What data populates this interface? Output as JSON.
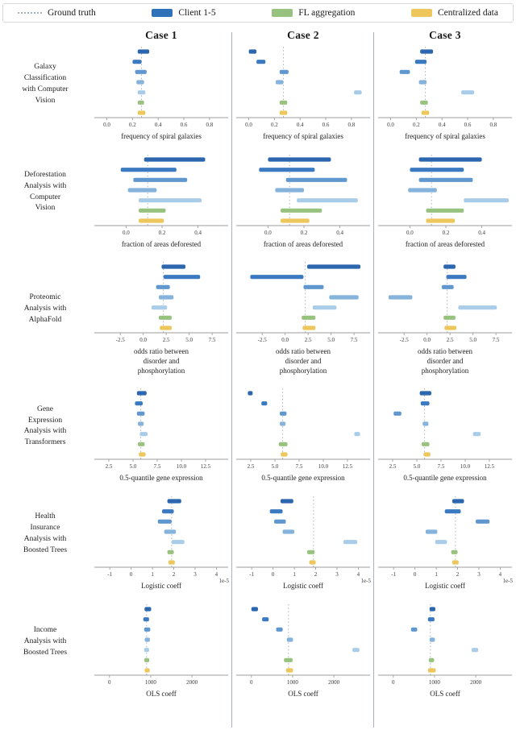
{
  "legend": {
    "items": [
      {
        "label": "Ground truth",
        "type": "dotted-line",
        "color": "#a9b3bd"
      },
      {
        "label": "Client 1-5",
        "type": "swatch",
        "color": "#2f72b8"
      },
      {
        "label": "FL aggregation",
        "type": "swatch",
        "color": "#97c37e"
      },
      {
        "label": "Centralized data",
        "type": "swatch",
        "color": "#edc75b"
      }
    ]
  },
  "chart_data": {
    "type": "bar",
    "subtype": "horizontal-interval-grid",
    "columns": [
      "Case 1",
      "Case 2",
      "Case 3"
    ],
    "series": [
      "Client 1",
      "Client 2",
      "Client 3",
      "Client 4",
      "Client 5",
      "FL aggregation",
      "Centralized data"
    ],
    "series_colors": [
      "#2b66ae",
      "#3b7ac0",
      "#6097ce",
      "#86b3dc",
      "#a9cce8",
      "#97c37e",
      "#edc75b"
    ],
    "ground_truth_color": "#a9b3bd",
    "rows": [
      {
        "label_lines": [
          "Galaxy",
          "Classification",
          "with Computer",
          "Vision"
        ],
        "xlabel_lines": [
          "frequency of spiral galaxies"
        ],
        "xlim": [
          -0.06,
          0.92
        ],
        "tick_values": [
          0.0,
          0.2,
          0.4,
          0.6,
          0.8
        ],
        "tick_labels": [
          "0.0",
          "0.2",
          "0.4",
          "0.6",
          "0.8"
        ],
        "ground_truth": 0.27,
        "cases": [
          {
            "case": "Case 1",
            "intervals": [
              [
                0.24,
                0.33
              ],
              [
                0.2,
                0.27
              ],
              [
                0.22,
                0.31
              ],
              [
                0.23,
                0.29
              ],
              [
                0.24,
                0.3
              ],
              [
                0.24,
                0.29
              ],
              [
                0.24,
                0.3
              ]
            ]
          },
          {
            "case": "Case 2",
            "intervals": [
              [
                0.0,
                0.06
              ],
              [
                0.06,
                0.13
              ],
              [
                0.24,
                0.31
              ],
              [
                0.21,
                0.27
              ],
              [
                0.82,
                0.88
              ],
              [
                0.24,
                0.3
              ],
              [
                0.24,
                0.3
              ]
            ]
          },
          {
            "case": "Case 3",
            "intervals": [
              [
                0.23,
                0.33
              ],
              [
                0.19,
                0.28
              ],
              [
                0.07,
                0.15
              ],
              [
                0.22,
                0.28
              ],
              [
                0.55,
                0.65
              ],
              [
                0.23,
                0.29
              ],
              [
                0.24,
                0.3
              ]
            ]
          }
        ]
      },
      {
        "label_lines": [
          "Deforestation",
          "Analysis with",
          "Computer",
          "Vision"
        ],
        "xlabel_lines": [
          "fraction of areas deforested"
        ],
        "xlim": [
          -0.15,
          0.55
        ],
        "tick_values": [
          0.0,
          0.2,
          0.4
        ],
        "tick_labels": [
          "0.0",
          "0.2",
          "0.4"
        ],
        "ground_truth": 0.12,
        "cases": [
          {
            "case": "Case 1",
            "intervals": [
              [
                0.1,
                0.44
              ],
              [
                -0.03,
                0.28
              ],
              [
                0.04,
                0.34
              ],
              [
                0.01,
                0.17
              ],
              [
                0.07,
                0.42
              ],
              [
                0.07,
                0.22
              ],
              [
                0.07,
                0.21
              ]
            ]
          },
          {
            "case": "Case 2",
            "intervals": [
              [
                0.0,
                0.35
              ],
              [
                -0.05,
                0.26
              ],
              [
                0.1,
                0.44
              ],
              [
                0.04,
                0.2
              ],
              [
                0.16,
                0.5
              ],
              [
                0.07,
                0.3
              ],
              [
                0.07,
                0.23
              ]
            ]
          },
          {
            "case": "Case 3",
            "intervals": [
              [
                0.05,
                0.4
              ],
              [
                0.0,
                0.3
              ],
              [
                0.05,
                0.35
              ],
              [
                -0.01,
                0.15
              ],
              [
                0.3,
                0.55
              ],
              [
                0.09,
                0.3
              ],
              [
                0.09,
                0.25
              ]
            ]
          }
        ]
      },
      {
        "label_lines": [
          "Proteomic",
          "Analysis with",
          "AlphaFold"
        ],
        "xlabel_lines": [
          "odds ratio between",
          "disorder and",
          "phosphorylation"
        ],
        "xlim": [
          -4.8,
          8.9
        ],
        "tick_values": [
          -2.5,
          0.0,
          2.5,
          5.0,
          7.5
        ],
        "tick_labels": [
          "-2.5",
          "0.0",
          "2.5",
          "5.0",
          "7.5"
        ],
        "ground_truth": 2.2,
        "cases": [
          {
            "case": "Case 1",
            "intervals": [
              [
                2.0,
                4.6
              ],
              [
                2.2,
                6.2
              ],
              [
                1.4,
                2.9
              ],
              [
                1.7,
                3.3
              ],
              [
                0.9,
                2.6
              ],
              [
                1.7,
                3.1
              ],
              [
                1.8,
                3.1
              ]
            ]
          },
          {
            "case": "Case 2",
            "intervals": [
              [
                2.4,
                8.2
              ],
              [
                -3.8,
                2.0
              ],
              [
                2.0,
                4.2
              ],
              [
                4.8,
                8.0
              ],
              [
                3.0,
                5.6
              ],
              [
                1.8,
                3.3
              ],
              [
                1.9,
                3.3
              ]
            ]
          },
          {
            "case": "Case 3",
            "intervals": [
              [
                1.8,
                3.1
              ],
              [
                2.1,
                4.3
              ],
              [
                1.6,
                2.9
              ],
              [
                -4.2,
                -1.6
              ],
              [
                3.4,
                7.6
              ],
              [
                1.8,
                3.1
              ],
              [
                1.9,
                3.2
              ]
            ]
          }
        ]
      },
      {
        "label_lines": [
          "Gene",
          "Expression",
          "Analysis with",
          "Transformers"
        ],
        "xlabel_lines": [
          "0.5-quantile gene expression"
        ],
        "xlim": [
          1.5,
          14.5
        ],
        "tick_values": [
          2.5,
          5.0,
          7.5,
          10.0,
          12.5
        ],
        "tick_labels": [
          "2.5",
          "5.0",
          "7.5",
          "10.0",
          "12.5"
        ],
        "ground_truth": 5.8,
        "cases": [
          {
            "case": "Case 1",
            "intervals": [
              [
                5.4,
                6.4
              ],
              [
                5.2,
                6.0
              ],
              [
                5.4,
                6.2
              ],
              [
                5.5,
                6.1
              ],
              [
                5.7,
                6.5
              ],
              [
                5.5,
                6.2
              ],
              [
                5.6,
                6.3
              ]
            ]
          },
          {
            "case": "Case 2",
            "intervals": [
              [
                2.2,
                2.7
              ],
              [
                3.6,
                4.2
              ],
              [
                5.5,
                6.2
              ],
              [
                5.5,
                6.1
              ],
              [
                13.2,
                13.8
              ],
              [
                5.4,
                6.3
              ],
              [
                5.6,
                6.3
              ]
            ]
          },
          {
            "case": "Case 3",
            "intervals": [
              [
                5.3,
                6.5
              ],
              [
                5.4,
                6.3
              ],
              [
                2.6,
                3.4
              ],
              [
                5.6,
                6.2
              ],
              [
                10.8,
                11.6
              ],
              [
                5.5,
                6.3
              ],
              [
                5.7,
                6.4
              ]
            ]
          }
        ]
      },
      {
        "label_lines": [
          "Health",
          "Insurance",
          "Analysis with",
          "Boosted Trees"
        ],
        "xlabel_lines": [
          "Logistic coeff"
        ],
        "xlim": [
          -1.5,
          4.4
        ],
        "tick_values": [
          -1,
          0,
          1,
          2,
          3,
          4
        ],
        "tick_labels": [
          "-1",
          "0",
          "1",
          "2",
          "3",
          "4"
        ],
        "offset_label": "1e-5",
        "units": "1e-5",
        "ground_truth": 1.9,
        "cases": [
          {
            "case": "Case 1",
            "intervals": [
              [
                1.7,
                2.35
              ],
              [
                1.45,
                2.0
              ],
              [
                1.25,
                1.9
              ],
              [
                1.55,
                2.1
              ],
              [
                1.9,
                2.5
              ],
              [
                1.7,
                2.0
              ],
              [
                1.75,
                2.05
              ]
            ]
          },
          {
            "case": "Case 2",
            "intervals": [
              [
                0.35,
                0.95
              ],
              [
                -0.15,
                0.45
              ],
              [
                0.05,
                0.6
              ],
              [
                0.45,
                1.0
              ],
              [
                3.3,
                3.95
              ],
              [
                1.6,
                1.95
              ],
              [
                1.7,
                2.0
              ]
            ]
          },
          {
            "case": "Case 3",
            "intervals": [
              [
                1.75,
                2.3
              ],
              [
                1.4,
                2.15
              ],
              [
                2.85,
                3.5
              ],
              [
                0.5,
                1.05
              ],
              [
                0.95,
                1.5
              ],
              [
                1.7,
                2.0
              ],
              [
                1.75,
                2.05
              ]
            ]
          }
        ]
      },
      {
        "label_lines": [
          "Income",
          "Analysis with",
          "Boosted Trees"
        ],
        "xlabel_lines": [
          "OLS coeff"
        ],
        "xlim": [
          -250,
          2800
        ],
        "tick_values": [
          0,
          1000,
          2000
        ],
        "tick_labels": [
          "0",
          "1000",
          "2000"
        ],
        "ground_truth": 900,
        "cases": [
          {
            "case": "Case 1",
            "intervals": [
              [
                850,
                1010
              ],
              [
                820,
                960
              ],
              [
                840,
                990
              ],
              [
                855,
                980
              ],
              [
                840,
                960
              ],
              [
                845,
                965
              ],
              [
                855,
                975
              ]
            ]
          },
          {
            "case": "Case 2",
            "intervals": [
              [
                0,
                160
              ],
              [
                260,
                420
              ],
              [
                600,
                760
              ],
              [
                860,
                1010
              ],
              [
                2450,
                2620
              ],
              [
                790,
                1000
              ],
              [
                840,
                1010
              ]
            ]
          },
          {
            "case": "Case 3",
            "intervals": [
              [
                880,
                1020
              ],
              [
                840,
                1000
              ],
              [
                430,
                580
              ],
              [
                880,
                1010
              ],
              [
                1900,
                2060
              ],
              [
                860,
                990
              ],
              [
                840,
                1030
              ]
            ]
          }
        ]
      }
    ]
  }
}
